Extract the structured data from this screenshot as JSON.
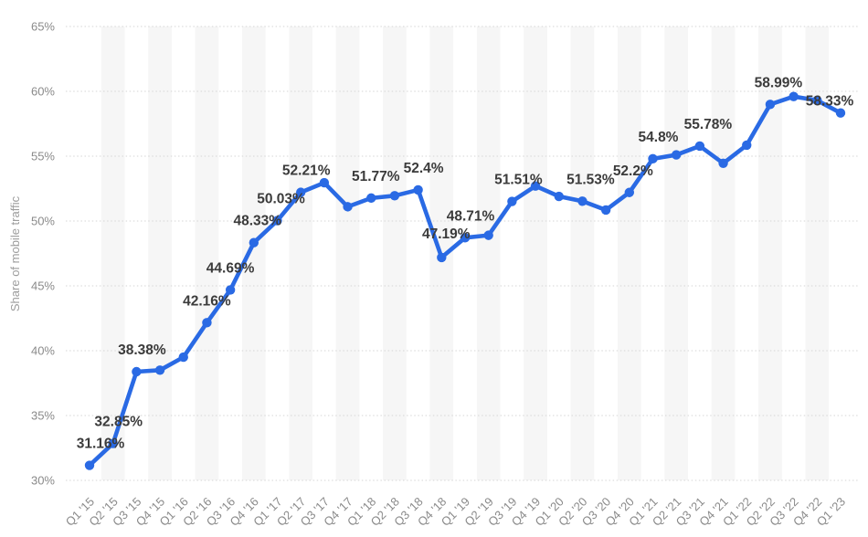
{
  "page": {
    "background_color": "#ffffff"
  },
  "chart_data": {
    "type": "line",
    "title": "",
    "xlabel": "",
    "ylabel": "Share of mobile traffic",
    "legend": "none",
    "grid": "horizontal-dotted",
    "plot_bands": "alternating vertical quarter stripes",
    "ylim": [
      30,
      65
    ],
    "y_tick_step": 5,
    "y_ticks": [
      "65%",
      "60%",
      "55%",
      "50%",
      "45%",
      "40%",
      "35%",
      "30%"
    ],
    "categories": [
      "Q1 '15",
      "Q2 '15",
      "Q3 '15",
      "Q4 '15",
      "Q1 '16",
      "Q2 '16",
      "Q3 '16",
      "Q4 '16",
      "Q1 '17",
      "Q2 '17",
      "Q3 '17",
      "Q4 '17",
      "Q1 '18",
      "Q2 '18",
      "Q3 '18",
      "Q4 '18",
      "Q1 '19",
      "Q2 '19",
      "Q3 '19",
      "Q4 '19",
      "Q1 '20",
      "Q2 '20",
      "Q3 '20",
      "Q4 '20",
      "Q1 '21",
      "Q2 '21",
      "Q3 '21",
      "Q4 '21",
      "Q1 '22",
      "Q2 '22",
      "Q3 '22",
      "Q4 '22",
      "Q1 '23"
    ],
    "values": [
      31.16,
      32.85,
      38.38,
      38.5,
      39.5,
      42.16,
      44.69,
      48.33,
      50.03,
      52.21,
      52.95,
      51.1,
      51.77,
      51.95,
      52.4,
      47.19,
      48.71,
      48.9,
      51.51,
      52.7,
      51.9,
      51.53,
      50.85,
      52.2,
      54.8,
      55.1,
      55.78,
      54.45,
      55.85,
      58.99,
      59.6,
      59.3,
      58.33
    ],
    "point_labels": [
      "31.16%",
      "32.85%",
      "38.38%",
      null,
      null,
      "42.16%",
      "44.69%",
      "48.33%",
      "50.03%",
      "52.21%",
      null,
      null,
      "51.77%",
      null,
      "52.4%",
      "47.19%",
      "48.71%",
      null,
      "51.51%",
      null,
      null,
      "51.53%",
      null,
      "52.2%",
      "54.8%",
      null,
      "55.78%",
      null,
      null,
      "58.99%",
      null,
      null,
      "58.33%"
    ],
    "colors": {
      "line": "#2a6ae4",
      "marker": "#2a6ae4",
      "data_label": "#3b3b3b",
      "tick_label": "#8a8a8a",
      "axis_title": "#9c9c9c",
      "gridline": "#d6d6d6",
      "plot_band": "#f6f6f6",
      "background": "#ffffff"
    }
  }
}
